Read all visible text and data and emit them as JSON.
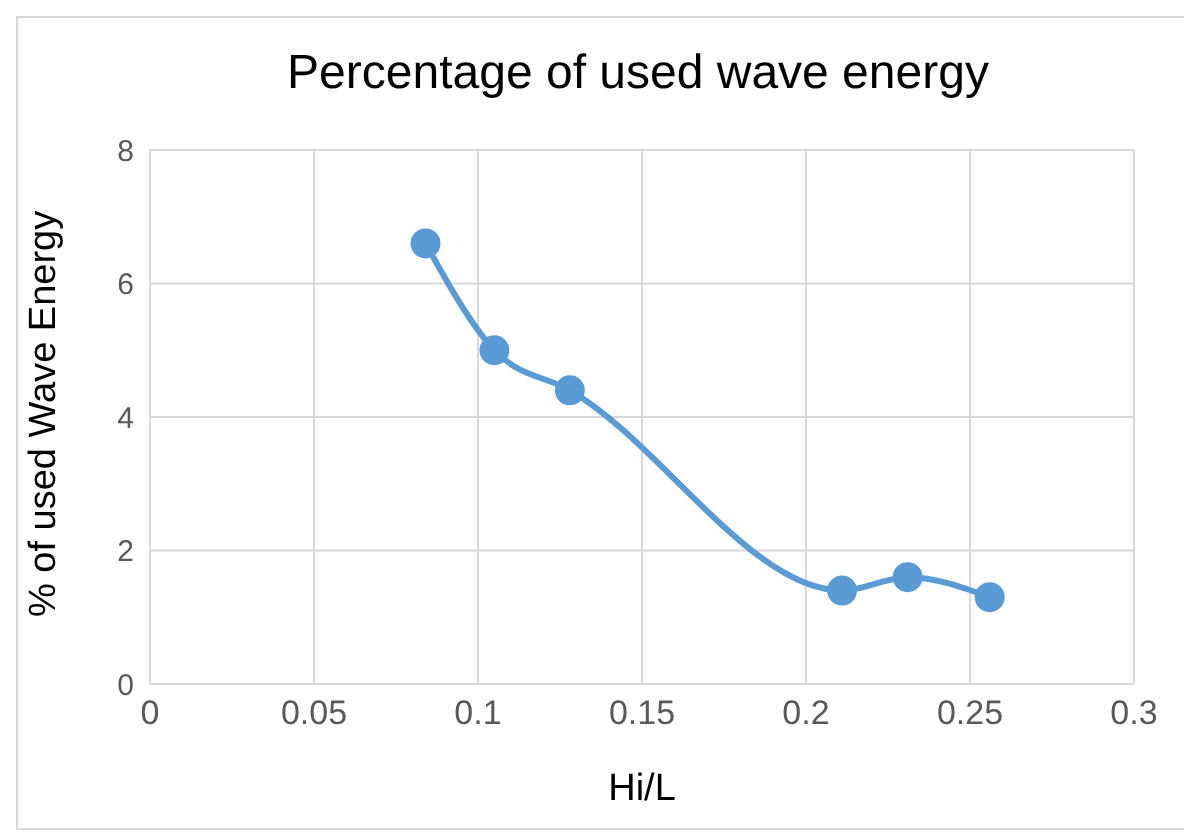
{
  "chart_data": {
    "type": "line",
    "title": "Percentage of used wave energy",
    "xlabel": "Hi/L",
    "ylabel": "% of used Wave Energy",
    "x": [
      0.084,
      0.105,
      0.128,
      0.211,
      0.231,
      0.256
    ],
    "series": [
      {
        "color": "#5b9bd5",
        "values": [
          6.6,
          5.0,
          4.4,
          1.4,
          1.6,
          1.3
        ]
      }
    ],
    "xlim": [
      0,
      0.3
    ],
    "xticks": [
      0,
      0.05,
      0.1,
      0.15,
      0.2,
      0.25,
      0.3
    ],
    "ylim": [
      0,
      8
    ],
    "yticks": [
      0,
      2,
      4,
      6,
      8
    ],
    "grid": true,
    "marker": "circle",
    "legend": false
  }
}
